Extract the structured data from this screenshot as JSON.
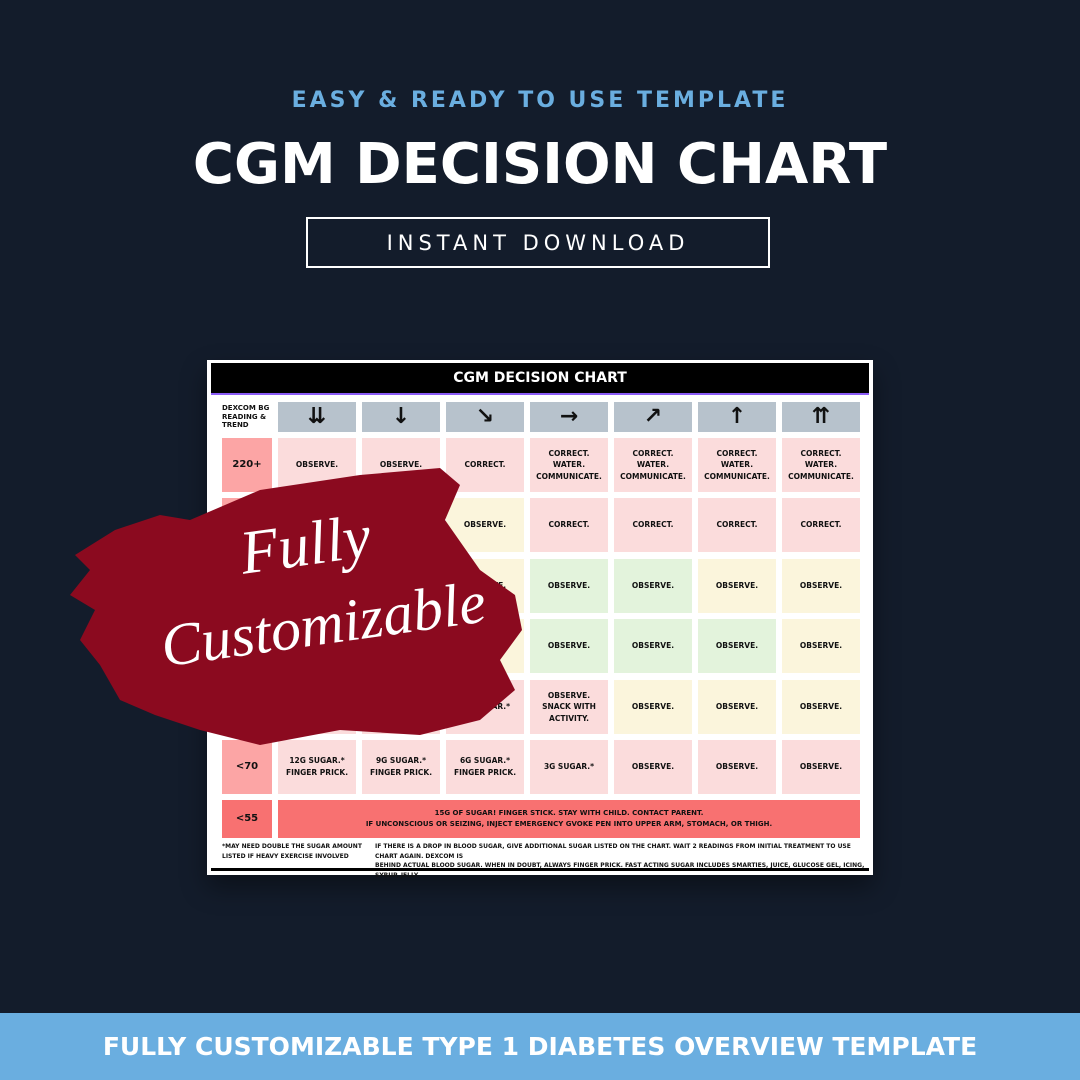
{
  "header": {
    "tagline": "EASY & READY TO USE TEMPLATE",
    "title": "CGM DECISION CHART",
    "button": "INSTANT DOWNLOAD"
  },
  "table": {
    "title": "CGM DECISION CHART",
    "corner": "DEXCOM BG\nREADING &\nTREND",
    "trends": [
      "⇊",
      "↓",
      "↘",
      "→",
      "↗",
      "↑",
      "⇈"
    ],
    "rows": [
      {
        "label": "220+",
        "cells": [
          "OBSERVE.",
          "OBSERVE.",
          "CORRECT.",
          "CORRECT.\nWATER.\nCOMMUNICATE.",
          "CORRECT.\nWATER.\nCOMMUNICATE.",
          "CORRECT.\nWATER.\nCOMMUNICATE.",
          "CORRECT.\nWATER.\nCOMMUNICATE."
        ]
      },
      {
        "cells": [
          "OBSERVE.",
          "CORRECT.",
          "CORRECT.",
          "CORRECT.",
          "CORRECT."
        ]
      },
      {
        "cells": [
          "OBSERVE.",
          "OBSERVE.",
          "OBSERVE.",
          "OBSERVE.",
          "OBSERVE."
        ]
      },
      {
        "cells": [
          "OBSERVE.",
          "OBSERVE.",
          "OBSERVE.",
          "OBSERVE."
        ]
      },
      {
        "cells": [
          "3G SUGAR.*",
          "OBSERVE.\nSNACK WITH\nACTIVITY.",
          "OBSERVE.",
          "OBSERVE.",
          "OBSERVE."
        ]
      },
      {
        "label": "<70",
        "cells": [
          "12G SUGAR.*\nFINGER PRICK.",
          "9G SUGAR.*\nFINGER PRICK.",
          "6G SUGAR.*\nFINGER PRICK.",
          "3G SUGAR.*",
          "OBSERVE.",
          "OBSERVE.",
          "OBSERVE."
        ]
      },
      {
        "label": "<55",
        "merged": "15G OF SUGAR! FINGER STICK. STAY WITH CHILD. CONTACT PARENT.\nIF UNCONSCIOUS OR SEIZING, INJECT EMERGENCY GVOKE PEN INTO UPPER ARM, STOMACH, OR THIGH."
      }
    ],
    "footnotes": [
      "*MAY NEED DOUBLE THE SUGAR AMOUNT\nLISTED IF HEAVY EXERCISE INVOLVED",
      "IF THERE IS A DROP IN BLOOD SUGAR, GIVE ADDITIONAL SUGAR LISTED ON THE CHART. WAIT 2 READINGS FROM INITIAL TREATMENT TO USE CHART AGAIN. DEXCOM IS\nBEHIND ACTUAL BLOOD SUGAR. WHEN IN DOUBT, ALWAYS FINGER PRICK. FAST ACTING SUGAR INCLUDES SMARTIES, JUICE, GLUCOSE GEL, ICING, SYRUP, JELLY."
    ]
  },
  "overlay": {
    "lines": [
      "Fully",
      "Customizable"
    ]
  },
  "banner": "FULLY CUSTOMIZABLE TYPE 1 DIABETES OVERVIEW TEMPLATE"
}
